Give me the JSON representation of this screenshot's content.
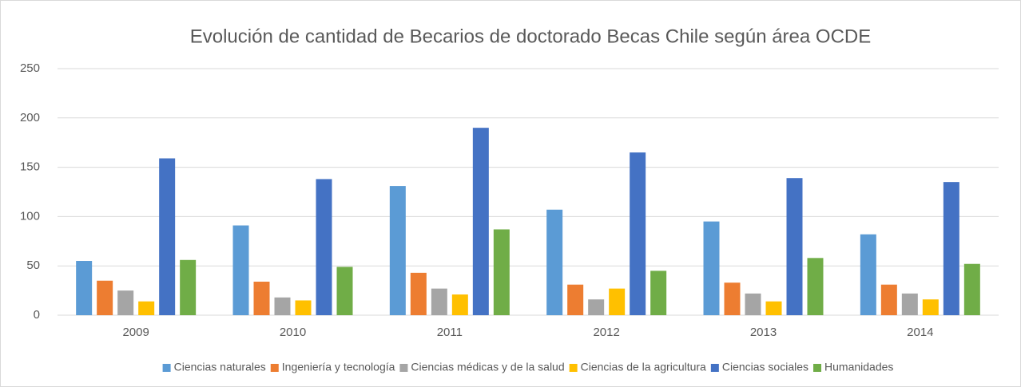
{
  "chart_data": {
    "type": "bar",
    "title": "Evolución de cantidad de Becarios de doctorado Becas Chile según área OCDE",
    "categories": [
      "2009",
      "2010",
      "2011",
      "2012",
      "2013",
      "2014"
    ],
    "series": [
      {
        "name": "Ciencias naturales",
        "color": "#5b9bd5",
        "values": [
          55,
          91,
          131,
          107,
          95,
          82
        ]
      },
      {
        "name": "Ingeniería y tecnología",
        "color": "#ed7d31",
        "values": [
          35,
          34,
          43,
          31,
          33,
          31
        ]
      },
      {
        "name": "Ciencias médicas y de la salud",
        "color": "#a5a5a5",
        "values": [
          25,
          18,
          27,
          16,
          22,
          22
        ]
      },
      {
        "name": "Ciencias de la agricultura",
        "color": "#ffc000",
        "values": [
          14,
          15,
          21,
          27,
          14,
          16
        ]
      },
      {
        "name": "Ciencias sociales",
        "color": "#4472c4",
        "values": [
          159,
          138,
          190,
          165,
          139,
          135
        ]
      },
      {
        "name": "Humanidades",
        "color": "#70ad47",
        "values": [
          56,
          49,
          87,
          45,
          58,
          52
        ]
      }
    ],
    "ylim": [
      0,
      250
    ],
    "yticks": [
      0,
      50,
      100,
      150,
      200,
      250
    ],
    "grid": true,
    "legend": "bottom"
  }
}
